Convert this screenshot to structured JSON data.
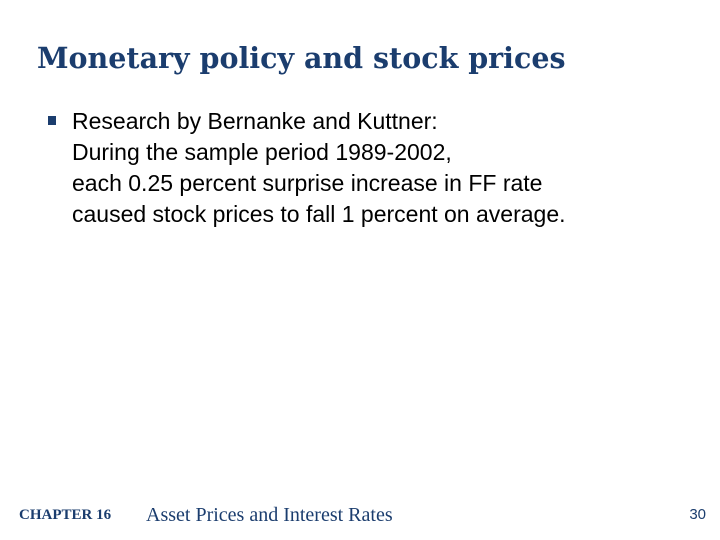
{
  "slide": {
    "title": "Monetary policy and stock prices",
    "bullet": {
      "marker_icon": "square-bullet-icon",
      "lines": [
        "Research by Bernanke and Kuttner:",
        "During the sample period 1989-2002,",
        "each 0.25 percent surprise increase in FF rate",
        "caused stock prices to fall 1 percent on average."
      ]
    }
  },
  "footer": {
    "chapter_label": "CHAPTER 16",
    "chapter_title": "Asset Prices and Interest Rates",
    "page_number": "30"
  },
  "colors": {
    "title": "#1b3d6e",
    "body_text": "#000000",
    "bullet": "#1b3d6e",
    "background": "#ffffff"
  }
}
